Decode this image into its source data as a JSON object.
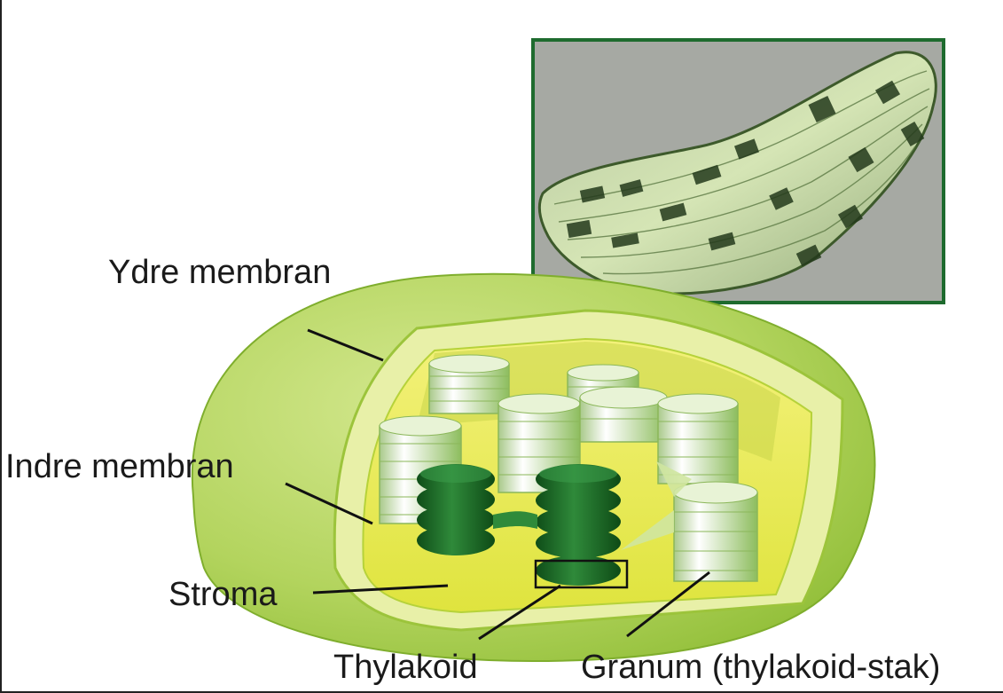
{
  "labels": {
    "outer_membrane": "Ydre membran",
    "inner_membrane": "Indre membran",
    "stroma": "Stroma",
    "thylakoid": "Thylakoid",
    "granum": "Granum (thylakoid-stak)"
  },
  "colors": {
    "outer_membrane": "#a8cf4a",
    "inner_surface": "#d8e85a",
    "stroma": "#e6ea4c",
    "granum_light": "#d6e9b8",
    "granum_dark": "#1f6b2a",
    "micrograph_border": "#1e6b2e",
    "micrograph_bg": "#a5a8a2"
  }
}
